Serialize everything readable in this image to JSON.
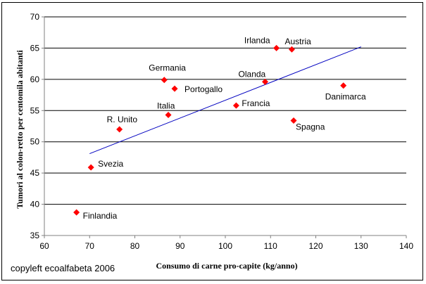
{
  "chart_data": {
    "type": "scatter",
    "xlabel": "Consumo di carne pro-capite (kg/anno)",
    "ylabel": "Tumori al colon-retto per centomila abitanti",
    "xlim": [
      60,
      140
    ],
    "ylim": [
      35,
      70
    ],
    "x_ticks": [
      60,
      70,
      80,
      90,
      100,
      110,
      120,
      130,
      140
    ],
    "y_ticks": [
      35,
      40,
      45,
      50,
      55,
      60,
      65,
      70
    ],
    "grid": "horizontal",
    "marker_color": "#ff0000",
    "trend_color": "#0000c0",
    "points": [
      {
        "label": "Irlanda",
        "x": 111.3,
        "y": 65.0
      },
      {
        "label": "Austria",
        "x": 114.7,
        "y": 64.8
      },
      {
        "label": "Germania",
        "x": 86.5,
        "y": 59.9
      },
      {
        "label": "Portogallo",
        "x": 88.8,
        "y": 58.5
      },
      {
        "label": "Olanda",
        "x": 108.8,
        "y": 59.6
      },
      {
        "label": "Danimarca",
        "x": 126.1,
        "y": 59.0
      },
      {
        "label": "Italia",
        "x": 87.4,
        "y": 54.3
      },
      {
        "label": "Francia",
        "x": 102.4,
        "y": 55.8
      },
      {
        "label": "Spagna",
        "x": 115.1,
        "y": 53.4
      },
      {
        "label": "R. Unito",
        "x": 76.6,
        "y": 52.0
      },
      {
        "label": "Svezia",
        "x": 70.3,
        "y": 45.9
      },
      {
        "label": "Finlandia",
        "x": 67.1,
        "y": 38.7
      }
    ],
    "trend": {
      "x": [
        70,
        130
      ],
      "y": [
        48.1,
        65.2
      ]
    }
  },
  "note": "copyleft ecoalfabeta 2006"
}
